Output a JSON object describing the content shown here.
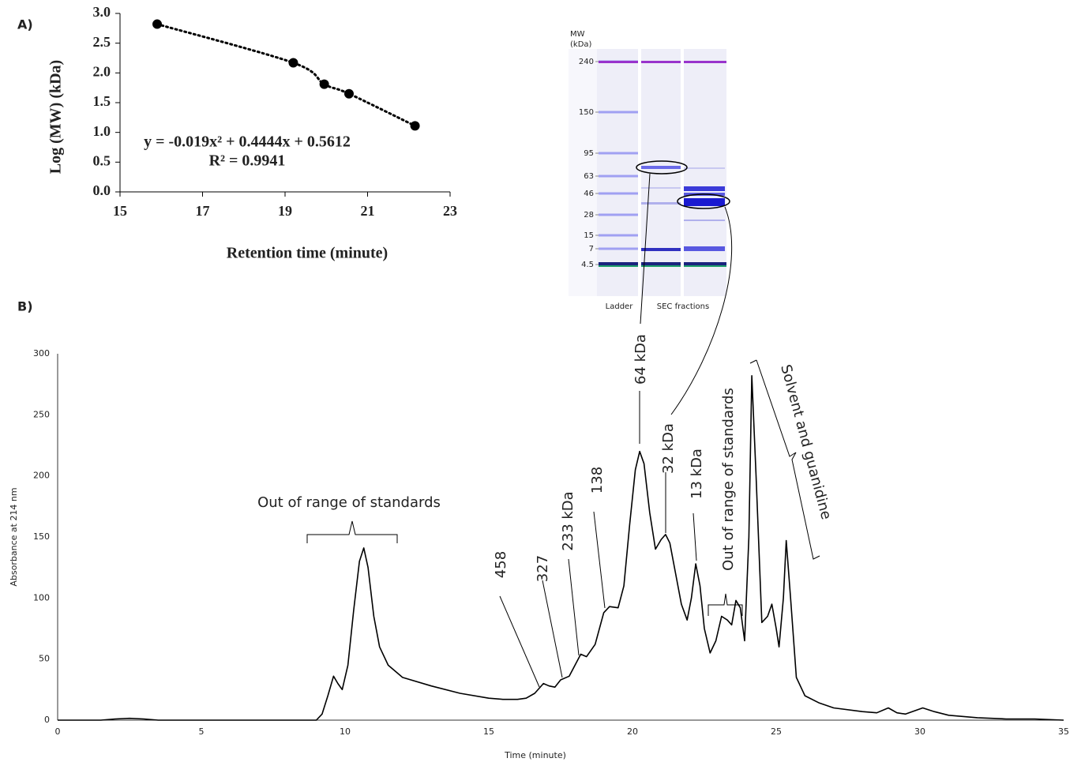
{
  "chart_data": [
    {
      "type": "scatter",
      "panel_label": "A)",
      "x_label": "Retention time (minute)",
      "y_label": "Log (MW) (kDa)",
      "x": [
        15.9,
        19.2,
        19.95,
        20.55,
        22.15
      ],
      "values": [
        2.82,
        2.17,
        1.81,
        1.65,
        1.11
      ],
      "color": "#000000",
      "trendline": true,
      "xlim": [
        15,
        23
      ],
      "xticks": [
        15,
        17,
        19,
        21,
        23
      ],
      "ylim": [
        0,
        3
      ],
      "yticks": [
        {
          "value": 0,
          "label": "0.0"
        },
        {
          "value": 0.5,
          "label": "0.5"
        },
        {
          "value": 1,
          "label": "1.0"
        },
        {
          "value": 1.5,
          "label": "1.5"
        },
        {
          "value": 2,
          "label": "2.0"
        },
        {
          "value": 2.5,
          "label": "2.5"
        },
        {
          "value": 3,
          "label": "3.0"
        }
      ],
      "annotations": [
        "y = -0.019x² + 0.4444x + 0.5612",
        "R² = 0.9941"
      ]
    },
    {
      "type": "line",
      "panel_label": "B)",
      "x_label": "Time (minute)",
      "y_label": "Absorbance at 214 nm",
      "color": "#000000",
      "x": [
        0,
        1.5,
        2,
        2.5,
        3,
        3.5,
        4,
        9,
        9.2,
        9.4,
        9.6,
        9.75,
        9.9,
        10.1,
        10.3,
        10.5,
        10.65,
        10.8,
        11,
        11.2,
        11.5,
        12,
        13,
        14,
        15,
        15.5,
        16,
        16.3,
        16.6,
        16.9,
        17.1,
        17.3,
        17.5,
        17.8,
        18,
        18.2,
        18.4,
        18.7,
        19,
        19.2,
        19.5,
        19.7,
        19.9,
        20.1,
        20.25,
        20.4,
        20.6,
        20.8,
        21,
        21.15,
        21.3,
        21.5,
        21.7,
        21.9,
        22.05,
        22.2,
        22.35,
        22.5,
        22.7,
        22.9,
        23.1,
        23.3,
        23.45,
        23.6,
        23.75,
        23.9,
        24.05,
        24.15,
        24.3,
        24.5,
        24.7,
        24.85,
        25,
        25.1,
        25.25,
        25.35,
        25.5,
        25.7,
        26,
        26.5,
        27,
        28,
        28.5,
        28.9,
        29.2,
        29.5,
        30.1,
        30.5,
        31,
        32,
        33,
        34,
        35
      ],
      "values": [
        0,
        0,
        1,
        1.5,
        1,
        0,
        0,
        0,
        5,
        20,
        36,
        30,
        25,
        45,
        90,
        130,
        141,
        125,
        85,
        60,
        45,
        35,
        28,
        22,
        18,
        17,
        17,
        18,
        22,
        30,
        28,
        27,
        33,
        36,
        45,
        54,
        52,
        62,
        88,
        93,
        92,
        110,
        160,
        205,
        220,
        210,
        170,
        140,
        148,
        152,
        145,
        120,
        95,
        82,
        100,
        128,
        110,
        75,
        55,
        65,
        85,
        82,
        78,
        98,
        92,
        65,
        150,
        282,
        200,
        80,
        85,
        95,
        75,
        60,
        100,
        147,
        100,
        35,
        20,
        14,
        10,
        7,
        6,
        10,
        6,
        5,
        10,
        7,
        4,
        2,
        1,
        1,
        0
      ],
      "xlim": [
        0,
        35
      ],
      "xticks": [
        0,
        5,
        10,
        15,
        20,
        25,
        30,
        35
      ],
      "ylim": [
        0,
        300
      ],
      "yticks": [
        0,
        50,
        100,
        150,
        200,
        250,
        300
      ],
      "annotations": [
        "Out of range of standards",
        "458",
        "327",
        "233 kDa",
        "138",
        "64 kDa",
        "32 kDa",
        "13 kDa",
        "Out of range of standards",
        "Solvent and guanidine"
      ]
    }
  ],
  "gel": {
    "axis_title": [
      "MW",
      "(kDa)"
    ],
    "mw_labels": [
      "240",
      "150",
      "95",
      "63",
      "46",
      "28",
      "15",
      "7",
      "4.5"
    ],
    "lanes": [
      "Ladder",
      "SEC fractions"
    ]
  }
}
